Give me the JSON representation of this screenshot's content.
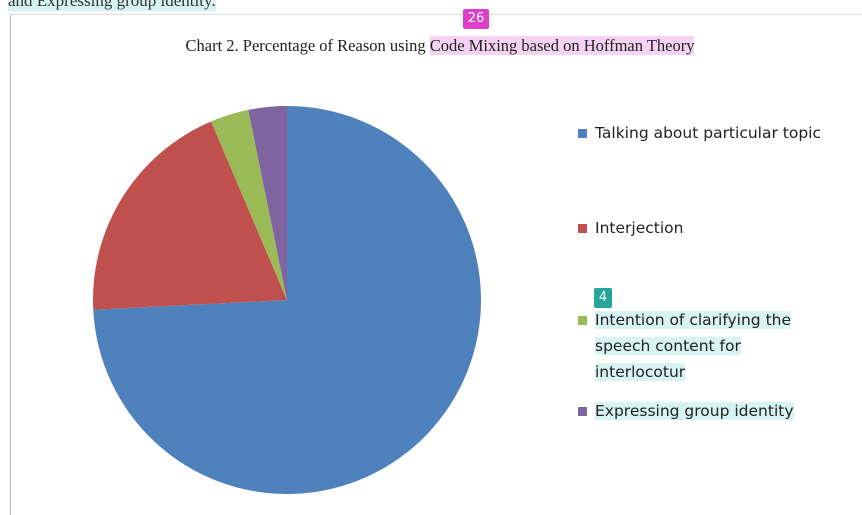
{
  "top_text": "and Expressing group identity.",
  "badges": [
    "26",
    "4"
  ],
  "chart_data": {
    "type": "pie",
    "title": "Chart 2. Percentage of Reason using",
    "title_highlight": "Code Mixing based on Hoffman Theory",
    "categories": [
      "Talking about particular topic",
      "Interjection",
      "Intention of clarifying the speech content for interlocotur",
      "Expressing group identity"
    ],
    "values": [
      74.2,
      19.4,
      3.2,
      3.2
    ],
    "colors": [
      "#4f81bd",
      "#c0504d",
      "#9bbb59",
      "#8064a2"
    ],
    "legend": "right",
    "legend_highlight": [
      false,
      false,
      true,
      true
    ]
  }
}
